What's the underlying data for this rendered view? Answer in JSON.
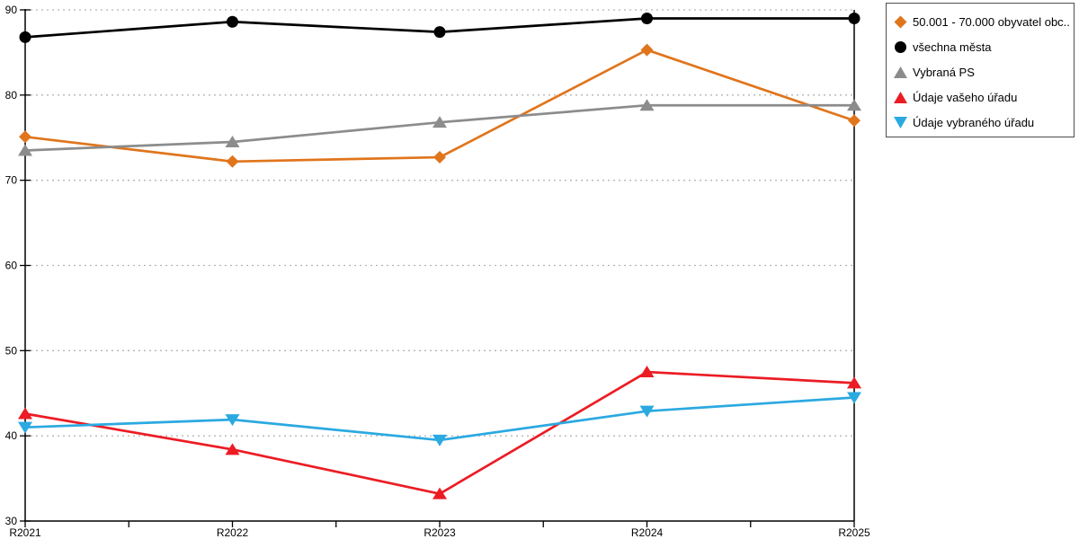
{
  "chart_data": {
    "type": "line",
    "title": "",
    "xlabel": "",
    "ylabel": "",
    "categories": [
      "R2021",
      "R2022",
      "R2023",
      "R2024",
      "R2025"
    ],
    "series": [
      {
        "name": "50.001 - 70.000 obyvatel obc...",
        "marker": "diamond",
        "color": "#E0751C",
        "values": [
          75.1,
          72.2,
          72.7,
          85.3,
          77
        ]
      },
      {
        "name": "všechna města",
        "marker": "circle",
        "color": "#000000",
        "values": [
          86.8,
          88.6,
          87.4,
          89,
          89
        ]
      },
      {
        "name": "Vybraná PS",
        "marker": "triangle-up",
        "color": "#8C8C8C",
        "values": [
          73.5,
          74.5,
          76.8,
          78.8,
          78.8
        ]
      },
      {
        "name": "Údaje vašeho úřadu",
        "marker": "triangle-up",
        "color": "#EC1C24",
        "values": [
          42.6,
          38.4,
          33.2,
          47.5,
          46.2
        ]
      },
      {
        "name": "Údaje vybraného úřadu",
        "marker": "triangle-down",
        "color": "#2BA9E1",
        "values": [
          41,
          41.9,
          39.5,
          42.9,
          44.5
        ]
      }
    ],
    "ylim": [
      30,
      90
    ],
    "yticks": [
      30,
      40,
      50,
      60,
      70,
      80,
      90
    ],
    "grid": "horizontal-dotted",
    "grid_color": "#B5B5B5",
    "axis_color": "#000000",
    "legend_position": "outside-top-right"
  }
}
